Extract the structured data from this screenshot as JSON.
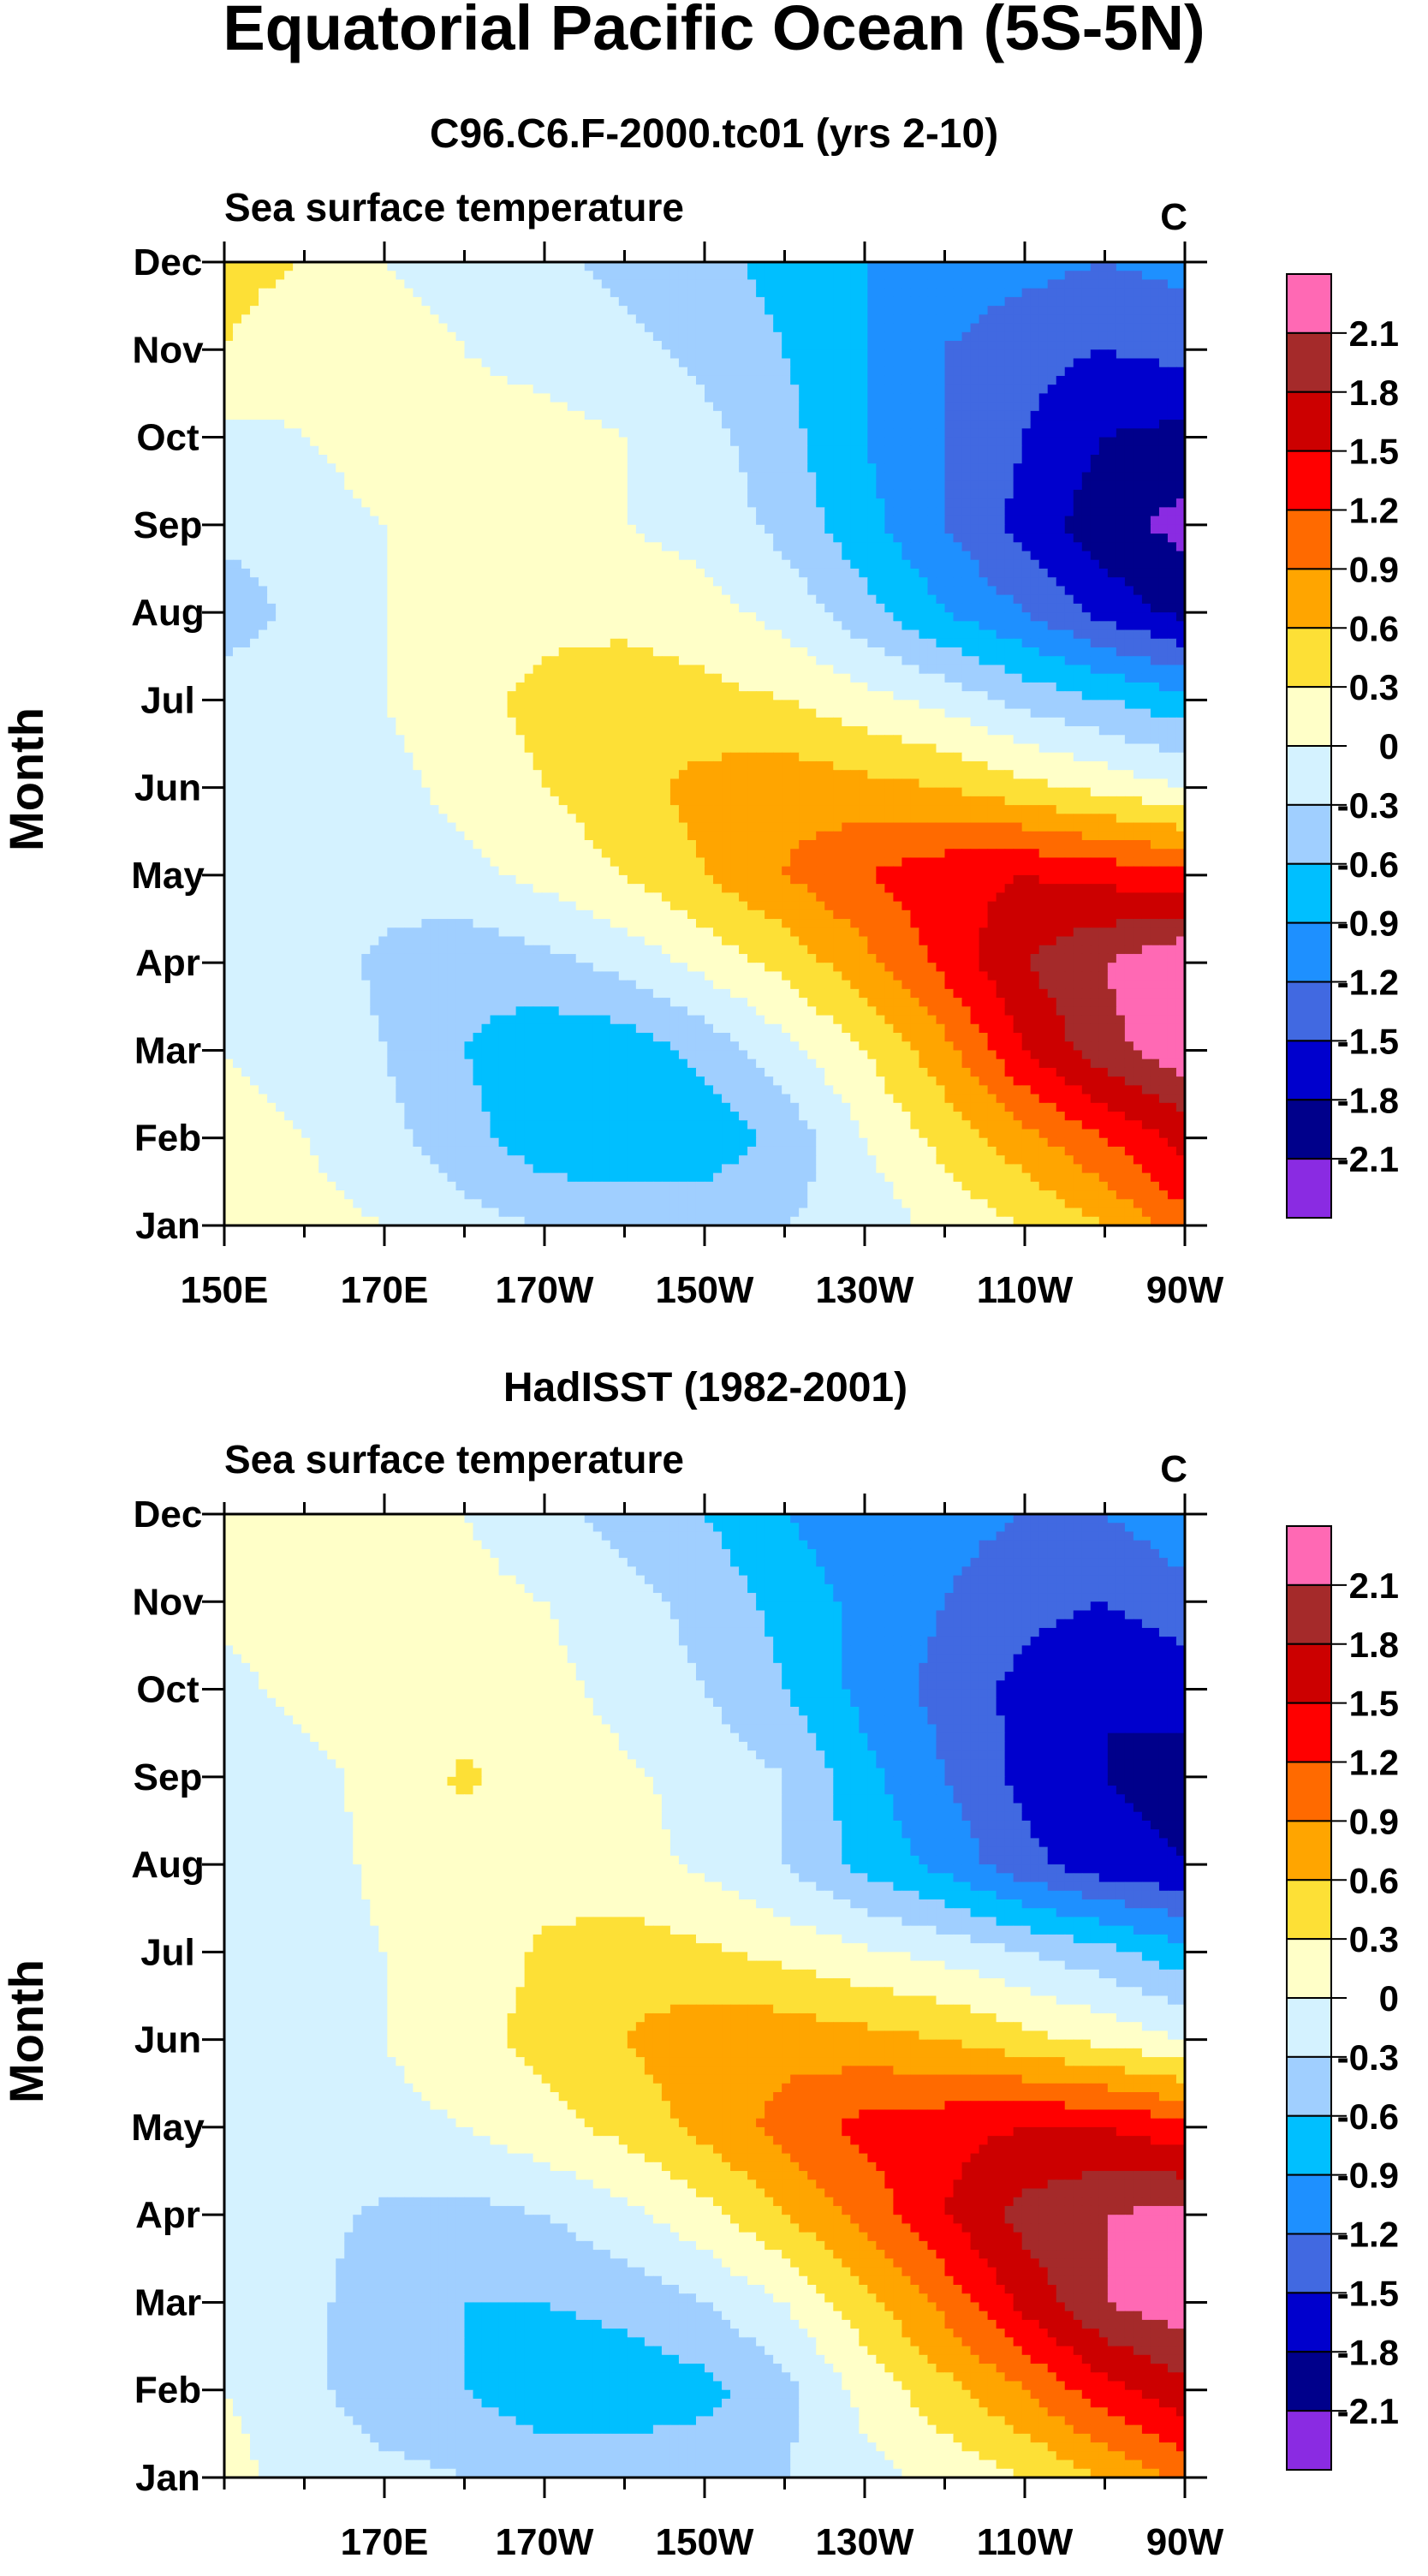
{
  "figure": {
    "title": "Equatorial Pacific Ocean (5S-5N)"
  },
  "colors": {
    "levels": [
      -2.1,
      -1.8,
      -1.5,
      -1.2,
      -0.9,
      -0.6,
      -0.3,
      0,
      0.3,
      0.6,
      0.9,
      1.2,
      1.5,
      1.8,
      2.1
    ],
    "fills": [
      "#8a2be2",
      "#00008b",
      "#0000cd",
      "#4169e1",
      "#1e90ff",
      "#00bfff",
      "#a0cfff",
      "#d4f2ff",
      "#ffffc8",
      "#fde036",
      "#ffa500",
      "#ff6a00",
      "#ff0000",
      "#cc0000",
      "#a52a2a",
      "#ff69b4"
    ]
  },
  "chart_data": [
    {
      "type": "heatmap",
      "subtitle": "C96.C6.F-2000.tc01 (yrs 2-10)",
      "left_title": "Sea surface temperature",
      "units": "C",
      "ylabel": "Month",
      "x_axis": {
        "range": [
          150,
          270
        ],
        "ticks": [
          150,
          170,
          190,
          210,
          230,
          250,
          270
        ],
        "tick_labels": [
          "150E",
          "170E",
          "170W",
          "150W",
          "130W",
          "110W",
          "90W"
        ]
      },
      "y_axis": {
        "months": [
          "Jan",
          "Feb",
          "Mar",
          "Apr",
          "May",
          "Jun",
          "Jul",
          "Aug",
          "Sep",
          "Oct",
          "Nov",
          "Dec"
        ]
      },
      "colorbar_labels": [
        "2.1",
        "1.8",
        "1.5",
        "1.2",
        "0.9",
        "0.6",
        "0.3",
        "0",
        "-0.3",
        "-0.6",
        "-0.9",
        "-1.2",
        "-1.5",
        "-1.8",
        "-2.1"
      ],
      "field": {
        "lon": [
          150,
          160,
          170,
          180,
          190,
          200,
          210,
          220,
          230,
          240,
          250,
          260,
          270
        ],
        "values": [
          [
            0.2,
            0.1,
            0.0,
            -0.2,
            -0.3,
            -0.35,
            -0.4,
            -0.3,
            -0.2,
            0.1,
            0.3,
            0.6,
            1.1
          ],
          [
            0.1,
            0.0,
            -0.2,
            -0.5,
            -0.8,
            -0.9,
            -0.8,
            -0.5,
            0.0,
            0.4,
            0.8,
            1.2,
            1.6
          ],
          [
            0.0,
            -0.1,
            -0.3,
            -0.6,
            -0.8,
            -0.8,
            -0.5,
            -0.1,
            0.3,
            0.8,
            1.5,
            2.0,
            2.3
          ],
          [
            -0.1,
            -0.2,
            -0.35,
            -0.5,
            -0.4,
            -0.2,
            0.1,
            0.4,
            0.8,
            1.3,
            1.8,
            2.1,
            2.4
          ],
          [
            0.0,
            -0.1,
            -0.2,
            -0.1,
            0.1,
            0.3,
            0.6,
            0.9,
            1.2,
            1.4,
            1.5,
            1.4,
            1.3
          ],
          [
            0.0,
            -0.1,
            -0.1,
            0.1,
            0.3,
            0.5,
            0.7,
            0.8,
            0.7,
            0.6,
            0.4,
            0.2,
            0.0
          ],
          [
            -0.1,
            -0.1,
            0.0,
            0.2,
            0.4,
            0.5,
            0.4,
            0.3,
            0.1,
            -0.1,
            -0.4,
            -0.6,
            -0.8
          ],
          [
            -0.5,
            -0.2,
            0.0,
            0.1,
            0.2,
            0.2,
            0.1,
            -0.1,
            -0.5,
            -0.9,
            -1.2,
            -1.6,
            -1.9
          ],
          [
            -0.2,
            -0.1,
            0.0,
            0.1,
            0.1,
            0.0,
            -0.1,
            -0.4,
            -0.8,
            -1.2,
            -1.6,
            -2.0,
            -2.2
          ],
          [
            -0.1,
            0.0,
            0.1,
            0.1,
            0.1,
            0.0,
            -0.2,
            -0.5,
            -0.9,
            -1.2,
            -1.5,
            -1.8,
            -1.9
          ],
          [
            0.3,
            0.1,
            0.1,
            0.0,
            -0.1,
            -0.2,
            -0.4,
            -0.6,
            -0.9,
            -1.2,
            -1.4,
            -1.5,
            -1.4
          ],
          [
            0.4,
            0.3,
            0.0,
            -0.1,
            -0.2,
            -0.4,
            -0.5,
            -0.7,
            -0.9,
            -1.0,
            -1.1,
            -1.2,
            -1.1
          ]
        ]
      }
    },
    {
      "type": "heatmap",
      "subtitle": "HadISST (1982-2001)",
      "left_title": "Sea surface temperature",
      "units": "C",
      "ylabel": "Month",
      "x_axis": {
        "range": [
          150,
          270
        ],
        "ticks": [
          170,
          190,
          210,
          230,
          250,
          270
        ],
        "tick_labels": [
          "170E",
          "170W",
          "150W",
          "130W",
          "110W",
          "90W"
        ]
      },
      "y_axis": {
        "months": [
          "Jan",
          "Feb",
          "Mar",
          "Apr",
          "May",
          "Jun",
          "Jul",
          "Aug",
          "Sep",
          "Oct",
          "Nov",
          "Dec"
        ]
      },
      "colorbar_labels": [
        "2.1",
        "1.8",
        "1.5",
        "1.2",
        "0.9",
        "0.6",
        "0.3",
        "0",
        "-0.3",
        "-0.6",
        "-0.9",
        "-1.2",
        "-1.5",
        "-1.8",
        "-2.1"
      ],
      "field": {
        "lon": [
          150,
          160,
          170,
          180,
          190,
          200,
          210,
          220,
          230,
          240,
          250,
          260,
          270
        ],
        "values": [
          [
            0.1,
            -0.1,
            -0.2,
            -0.3,
            -0.4,
            -0.4,
            -0.4,
            -0.3,
            -0.1,
            0.1,
            0.3,
            0.6,
            1.0
          ],
          [
            0.0,
            -0.2,
            -0.5,
            -0.6,
            -0.8,
            -0.8,
            -0.7,
            -0.4,
            0.1,
            0.5,
            0.9,
            1.4,
            1.7
          ],
          [
            0.0,
            -0.2,
            -0.5,
            -0.6,
            -0.6,
            -0.5,
            -0.3,
            0.0,
            0.5,
            1.0,
            1.6,
            2.1,
            2.3
          ],
          [
            -0.1,
            -0.2,
            -0.35,
            -0.4,
            -0.3,
            -0.1,
            0.2,
            0.6,
            1.0,
            1.5,
            1.9,
            2.1,
            2.2
          ],
          [
            -0.1,
            -0.15,
            -0.1,
            0.0,
            0.2,
            0.4,
            0.7,
            1.0,
            1.3,
            1.4,
            1.5,
            1.5,
            1.3
          ],
          [
            -0.2,
            -0.1,
            0.0,
            0.2,
            0.4,
            0.6,
            0.8,
            0.8,
            0.7,
            0.6,
            0.4,
            0.2,
            0.0
          ],
          [
            -0.15,
            -0.1,
            0.0,
            0.1,
            0.35,
            0.45,
            0.35,
            0.2,
            0.05,
            -0.1,
            -0.3,
            -0.5,
            -0.8
          ],
          [
            -0.3,
            -0.1,
            0.05,
            0.15,
            0.15,
            0.1,
            -0.05,
            -0.3,
            -0.7,
            -1.0,
            -1.4,
            -1.7,
            -1.8
          ],
          [
            -0.2,
            -0.1,
            0.1,
            0.35,
            0.15,
            0.05,
            -0.1,
            -0.3,
            -0.8,
            -1.2,
            -1.6,
            -1.8,
            -1.9
          ],
          [
            -0.1,
            0.1,
            0.1,
            0.1,
            0.1,
            -0.1,
            -0.3,
            -0.6,
            -1.0,
            -1.3,
            -1.6,
            -1.8,
            -1.7
          ],
          [
            0.1,
            0.1,
            0.1,
            0.1,
            0.0,
            -0.2,
            -0.4,
            -0.7,
            -1.0,
            -1.2,
            -1.4,
            -1.5,
            -1.3
          ],
          [
            0.2,
            0.2,
            0.1,
            0.0,
            -0.2,
            -0.4,
            -0.6,
            -0.9,
            -1.1,
            -1.1,
            -1.2,
            -1.2,
            -1.0
          ]
        ]
      }
    }
  ]
}
